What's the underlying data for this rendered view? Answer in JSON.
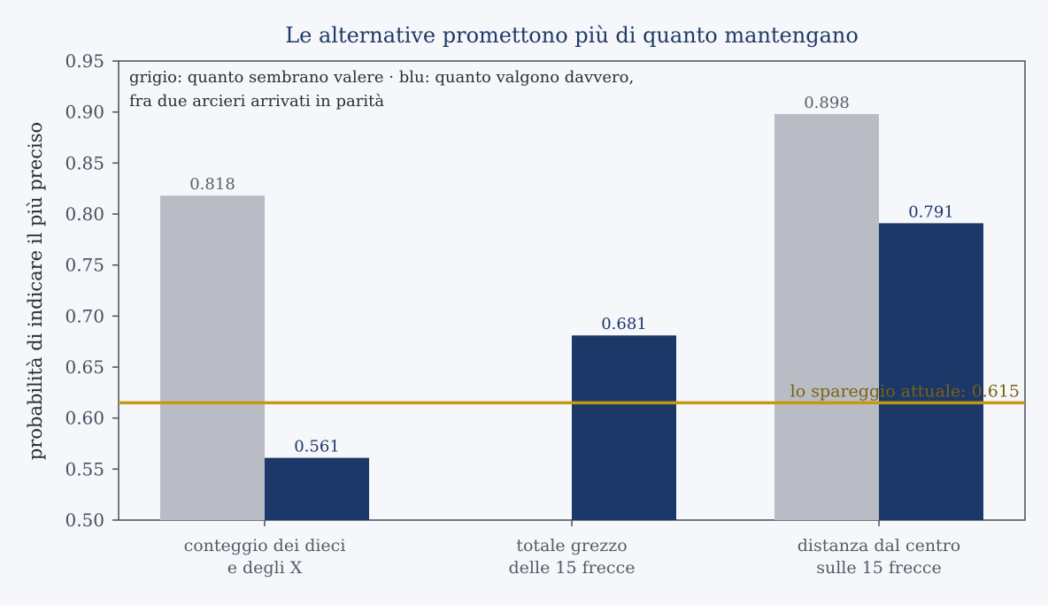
{
  "chart_data": {
    "type": "bar",
    "title": "Le alternative promettono più di quanto mantengano",
    "ylabel": "probabilità di indicare il più preciso",
    "xlabel": "",
    "ylim": [
      0.5,
      0.95
    ],
    "yticks": [
      "0.50",
      "0.55",
      "0.60",
      "0.65",
      "0.70",
      "0.75",
      "0.80",
      "0.85",
      "0.90",
      "0.95"
    ],
    "categories": [
      [
        "conteggio dei dieci",
        "e degli X"
      ],
      [
        "totale grezzo",
        "delle 15 frecce"
      ],
      [
        "distanza dal centro",
        "sulle 15 frecce"
      ]
    ],
    "series": [
      {
        "values": [
          0.818,
          null,
          0.898
        ],
        "labels": [
          "0.818",
          null,
          "0.898"
        ],
        "color": "#b9bcc5",
        "label_color": "#5a5e68"
      },
      {
        "values": [
          0.561,
          0.681,
          0.791
        ],
        "labels": [
          "0.561",
          "0.681",
          "0.791"
        ],
        "color": "#1c3869",
        "label_color": "#1c3869"
      }
    ],
    "annotation": {
      "line1": "grigio: quanto sembrano valere  ·  blu: quanto valgono davvero,",
      "line2": "fra due arcieri arrivati in parità"
    },
    "reference_line": {
      "value": 0.615,
      "label": "lo spareggio attuale: 0.615",
      "color": "#c49a14",
      "label_color": "#7a6210"
    },
    "grid": false
  }
}
